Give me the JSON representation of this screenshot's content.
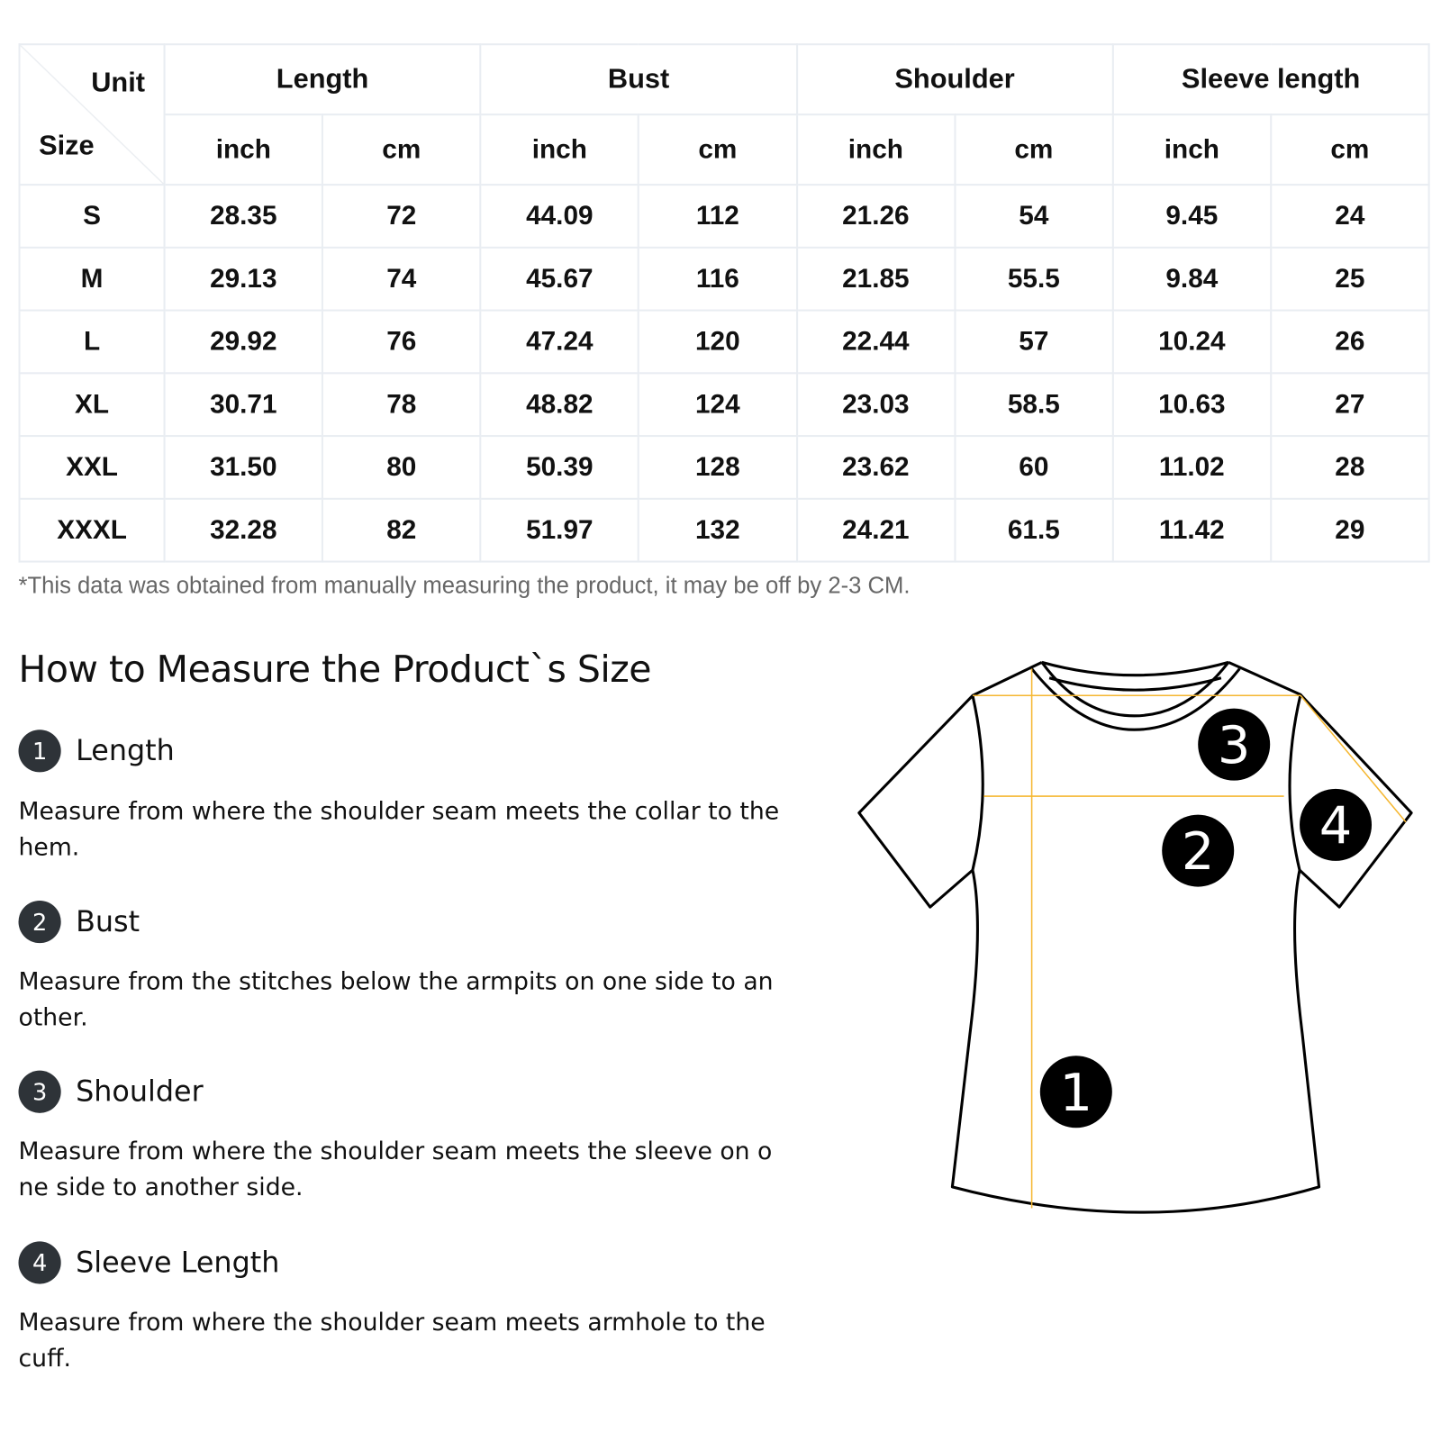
{
  "table": {
    "corner_unit": "Unit",
    "corner_size": "Size",
    "groups": [
      "Length",
      "Bust",
      "Shoulder",
      "Sleeve length"
    ],
    "units": [
      "inch",
      "cm"
    ],
    "rows": [
      [
        "S",
        "28.35",
        "72",
        "44.09",
        "112",
        "21.26",
        "54",
        "9.45",
        "24"
      ],
      [
        "M",
        "29.13",
        "74",
        "45.67",
        "116",
        "21.85",
        "55.5",
        "9.84",
        "25"
      ],
      [
        "L",
        "29.92",
        "76",
        "47.24",
        "120",
        "22.44",
        "57",
        "10.24",
        "26"
      ],
      [
        "XL",
        "30.71",
        "78",
        "48.82",
        "124",
        "23.03",
        "58.5",
        "10.63",
        "27"
      ],
      [
        "XXL",
        "31.50",
        "80",
        "50.39",
        "128",
        "23.62",
        "60",
        "11.02",
        "28"
      ],
      [
        "XXXL",
        "32.28",
        "82",
        "51.97",
        "132",
        "24.21",
        "61.5",
        "11.42",
        "29"
      ]
    ]
  },
  "note": "*This data was obtained from manually measuring the product, it may be off by 2-3 CM.",
  "guide": {
    "title": "How to Measure the Product`s Size",
    "items": [
      {
        "num": "1",
        "label": "Length",
        "desc": "Measure from where the shoulder seam meets the collar to the hem."
      },
      {
        "num": "2",
        "label": "Bust",
        "desc": "Measure from the stitches below the armpits on one side to an other."
      },
      {
        "num": "3",
        "label": "Shoulder",
        "desc": "Measure from where the shoulder seam meets the sleeve on o ne side to another side."
      },
      {
        "num": "4",
        "label": "Sleeve Length",
        "desc": "Measure from where the shoulder seam meets armhole to the cuff."
      }
    ]
  },
  "diagram": {
    "markers": [
      "1",
      "2",
      "3",
      "4"
    ],
    "line_color": "#f5b731",
    "outline_color": "#000000"
  }
}
